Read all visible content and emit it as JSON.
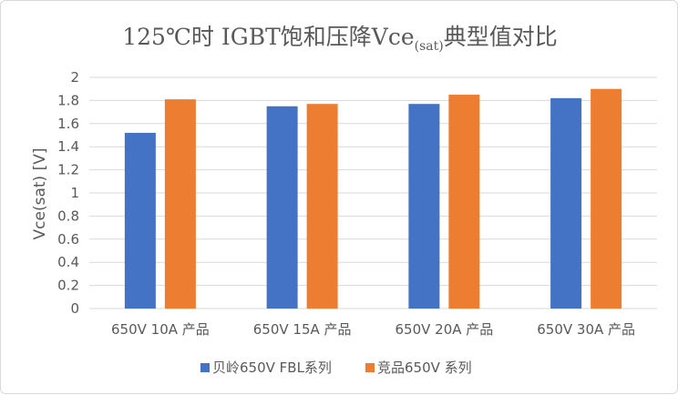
{
  "chart_data": {
    "type": "bar",
    "title": {
      "main": "125℃时 IGBT饱和压降Vce",
      "subscript": "(sat)",
      "suffix": "典型值对比"
    },
    "ylabel": "Vce(sat) [V]",
    "xlabel": "",
    "ylim": [
      0,
      2
    ],
    "yticks": [
      "0",
      "0.2",
      "0.4",
      "0.6",
      "0.8",
      "1",
      "1.2",
      "1.4",
      "1.6",
      "1.8",
      "2"
    ],
    "categories": [
      "650V 10A 产品",
      "650V 15A 产品",
      "650V 20A 产品",
      "650V 30A 产品"
    ],
    "series": [
      {
        "name": "贝岭650V FBL系列",
        "color": "#4472c4",
        "values": [
          1.52,
          1.75,
          1.77,
          1.82
        ]
      },
      {
        "name": "竞品650V 系列",
        "color": "#ed7d31",
        "values": [
          1.81,
          1.77,
          1.85,
          1.9
        ]
      }
    ],
    "grid": true,
    "legend": "bottom"
  }
}
